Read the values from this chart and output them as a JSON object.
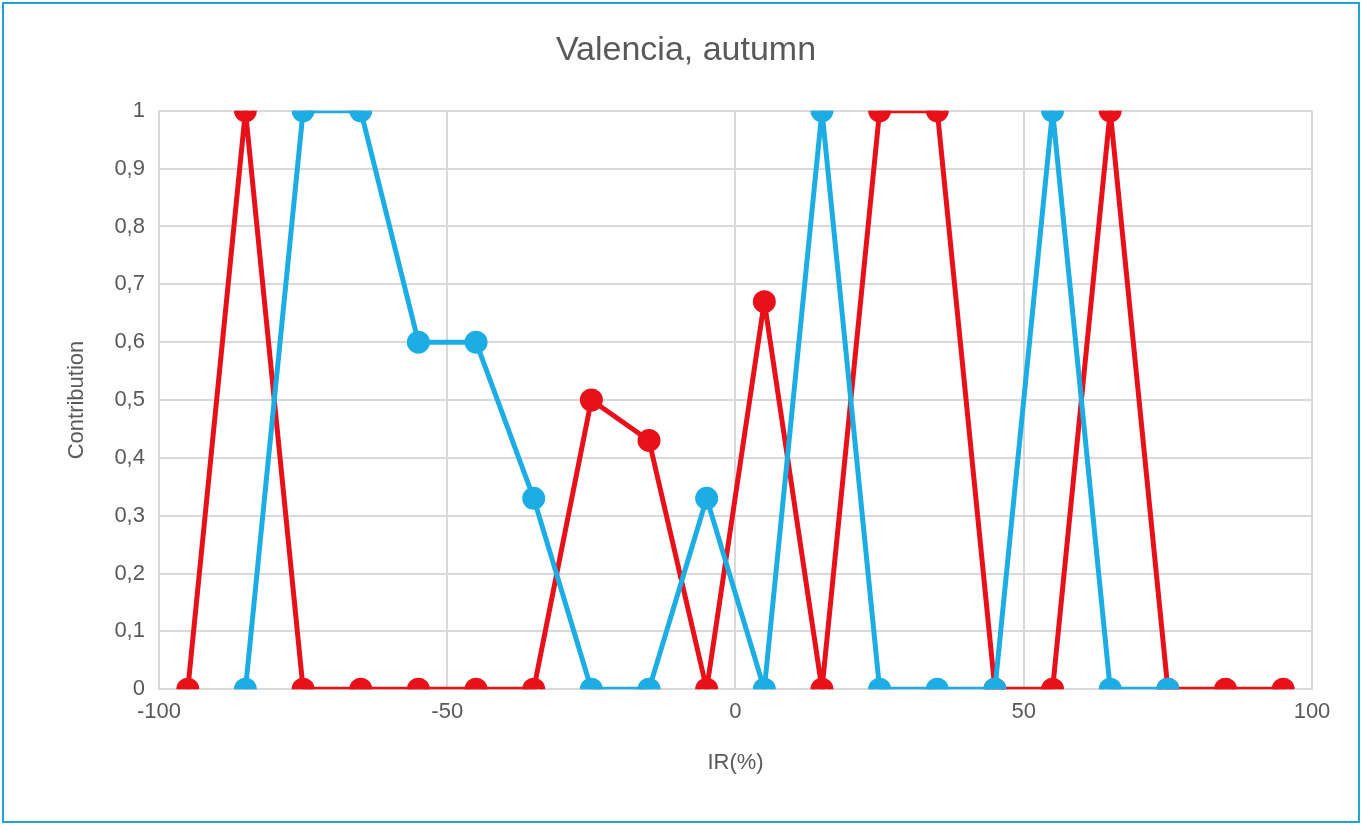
{
  "chart_data": {
    "type": "line",
    "title": "Valencia, autumn",
    "xlabel": "IR(%)",
    "ylabel": "Contribution",
    "x": [
      -95,
      -85,
      -75,
      -65,
      -55,
      -45,
      -35,
      -25,
      -15,
      -5,
      5,
      15,
      25,
      35,
      45,
      55,
      65,
      75,
      85,
      95
    ],
    "series": [
      {
        "color": "#1cade4",
        "values": [
          null,
          0,
          1,
          1,
          0.6,
          0.6,
          0.33,
          0,
          0,
          0.33,
          0,
          1,
          0,
          0,
          0,
          1,
          0,
          0,
          null,
          null
        ]
      },
      {
        "color": "#e8111a",
        "values": [
          0,
          1,
          0,
          0,
          0,
          0,
          0,
          0.5,
          0.43,
          0,
          0.67,
          0,
          1,
          1,
          0,
          0,
          1,
          0,
          0,
          0
        ]
      }
    ],
    "xlim": [
      -100,
      100
    ],
    "xticks": [
      -100,
      -50,
      0,
      50,
      100
    ],
    "ylim": [
      0,
      1
    ],
    "yticks": [
      0,
      {
        "value": 0.1,
        "label": "0,1"
      },
      {
        "value": 0.2,
        "label": "0,2"
      },
      {
        "value": 0.3,
        "label": "0,3"
      },
      {
        "value": 0.4,
        "label": "0,4"
      },
      {
        "value": 0.5,
        "label": "0,5"
      },
      {
        "value": 0.6,
        "label": "0,6"
      },
      {
        "value": 0.7,
        "label": "0,7"
      },
      {
        "value": 0.8,
        "label": "0,8"
      },
      {
        "value": 0.9,
        "label": "0,9"
      },
      1
    ],
    "grid": true,
    "marker": "circle",
    "line_style": "solid"
  }
}
